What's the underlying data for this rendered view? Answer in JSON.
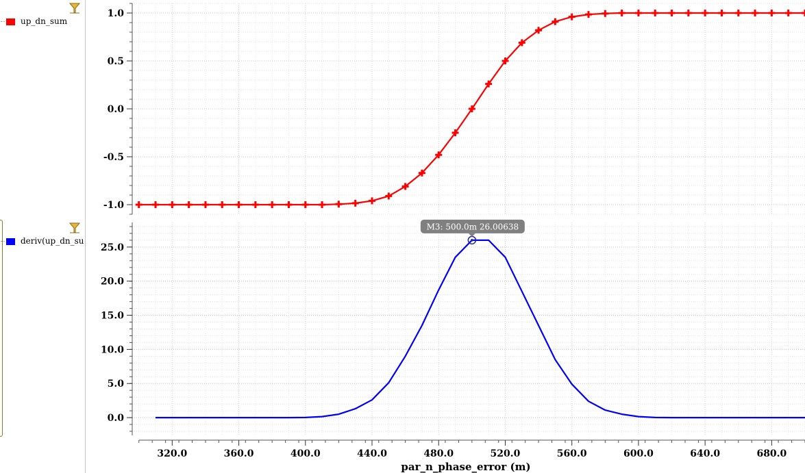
{
  "legend": {
    "top": {
      "label": "up_dn_sum",
      "color": "#ff0000"
    },
    "bottom": {
      "label": "deriv(up_dn_su",
      "color": "#0000ff"
    }
  },
  "icons": {
    "filter": "filter-funnel-icon"
  },
  "marker": {
    "label": "M3: 500.0m 26.00638",
    "x": 500,
    "y": 26.00638
  },
  "chart_data": [
    {
      "type": "line",
      "series": [
        {
          "name": "up_dn_sum",
          "color": "#ff0000",
          "marker": "plus",
          "x": [
            300,
            310,
            320,
            330,
            340,
            350,
            360,
            370,
            380,
            390,
            400,
            410,
            420,
            430,
            440,
            450,
            460,
            470,
            480,
            490,
            500,
            510,
            520,
            530,
            540,
            550,
            560,
            570,
            580,
            590,
            600,
            610,
            620,
            630,
            640,
            650,
            660,
            670,
            680,
            690,
            700
          ],
          "values": [
            -1.0,
            -1.0,
            -1.0,
            -1.0,
            -1.0,
            -1.0,
            -1.0,
            -1.0,
            -1.0,
            -1.0,
            -1.0,
            -1.0,
            -0.995,
            -0.985,
            -0.96,
            -0.91,
            -0.81,
            -0.67,
            -0.48,
            -0.25,
            0.0,
            0.26,
            0.5,
            0.69,
            0.82,
            0.91,
            0.96,
            0.985,
            0.995,
            1.0,
            1.0,
            1.0,
            1.0,
            1.0,
            1.0,
            1.0,
            1.0,
            1.0,
            1.0,
            1.0,
            1.0
          ]
        }
      ],
      "ylim": [
        -1.1,
        1.1
      ],
      "yticks": [
        "1.0",
        "0.5",
        "0.0",
        "-0.5",
        "-1.0"
      ],
      "ytick_values": [
        1.0,
        0.5,
        0.0,
        -0.5,
        -1.0
      ],
      "grid": true
    },
    {
      "type": "line",
      "series": [
        {
          "name": "deriv(up_dn_su",
          "color": "#0000ff",
          "x": [
            310,
            320,
            330,
            340,
            350,
            360,
            370,
            380,
            390,
            400,
            410,
            420,
            430,
            440,
            450,
            460,
            470,
            480,
            490,
            500,
            510,
            520,
            530,
            540,
            550,
            560,
            570,
            580,
            590,
            600,
            610,
            620,
            630,
            640,
            650,
            660,
            670,
            680,
            690,
            700
          ],
          "values": [
            0.0,
            0.0,
            0.0,
            0.0,
            0.0,
            0.0,
            0.0,
            0.0,
            0.0,
            0.02,
            0.15,
            0.5,
            1.3,
            2.6,
            5.1,
            9.0,
            13.5,
            18.7,
            23.5,
            26.0,
            26.0,
            23.5,
            18.5,
            13.5,
            8.5,
            4.9,
            2.4,
            1.1,
            0.5,
            0.15,
            0.02,
            0.0,
            0.0,
            0.0,
            0.0,
            0.0,
            0.0,
            0.0,
            0.0,
            0.0
          ]
        }
      ],
      "ylim": [
        -2.6,
        28.6
      ],
      "yticks": [
        "25.0",
        "20.0",
        "15.0",
        "10.0",
        "5.0",
        "0.0"
      ],
      "ytick_values": [
        25,
        20,
        15,
        10,
        5,
        0
      ],
      "grid": true
    }
  ],
  "x_axis": {
    "xlabel": "par_n_phase_error (m)",
    "xlim": [
      296,
      700
    ],
    "xticks": [
      "320.0",
      "360.0",
      "400.0",
      "440.0",
      "480.0",
      "520.0",
      "560.0",
      "600.0",
      "640.0",
      "680.0"
    ],
    "xtick_values": [
      320,
      360,
      400,
      440,
      480,
      520,
      560,
      600,
      640,
      680
    ]
  }
}
